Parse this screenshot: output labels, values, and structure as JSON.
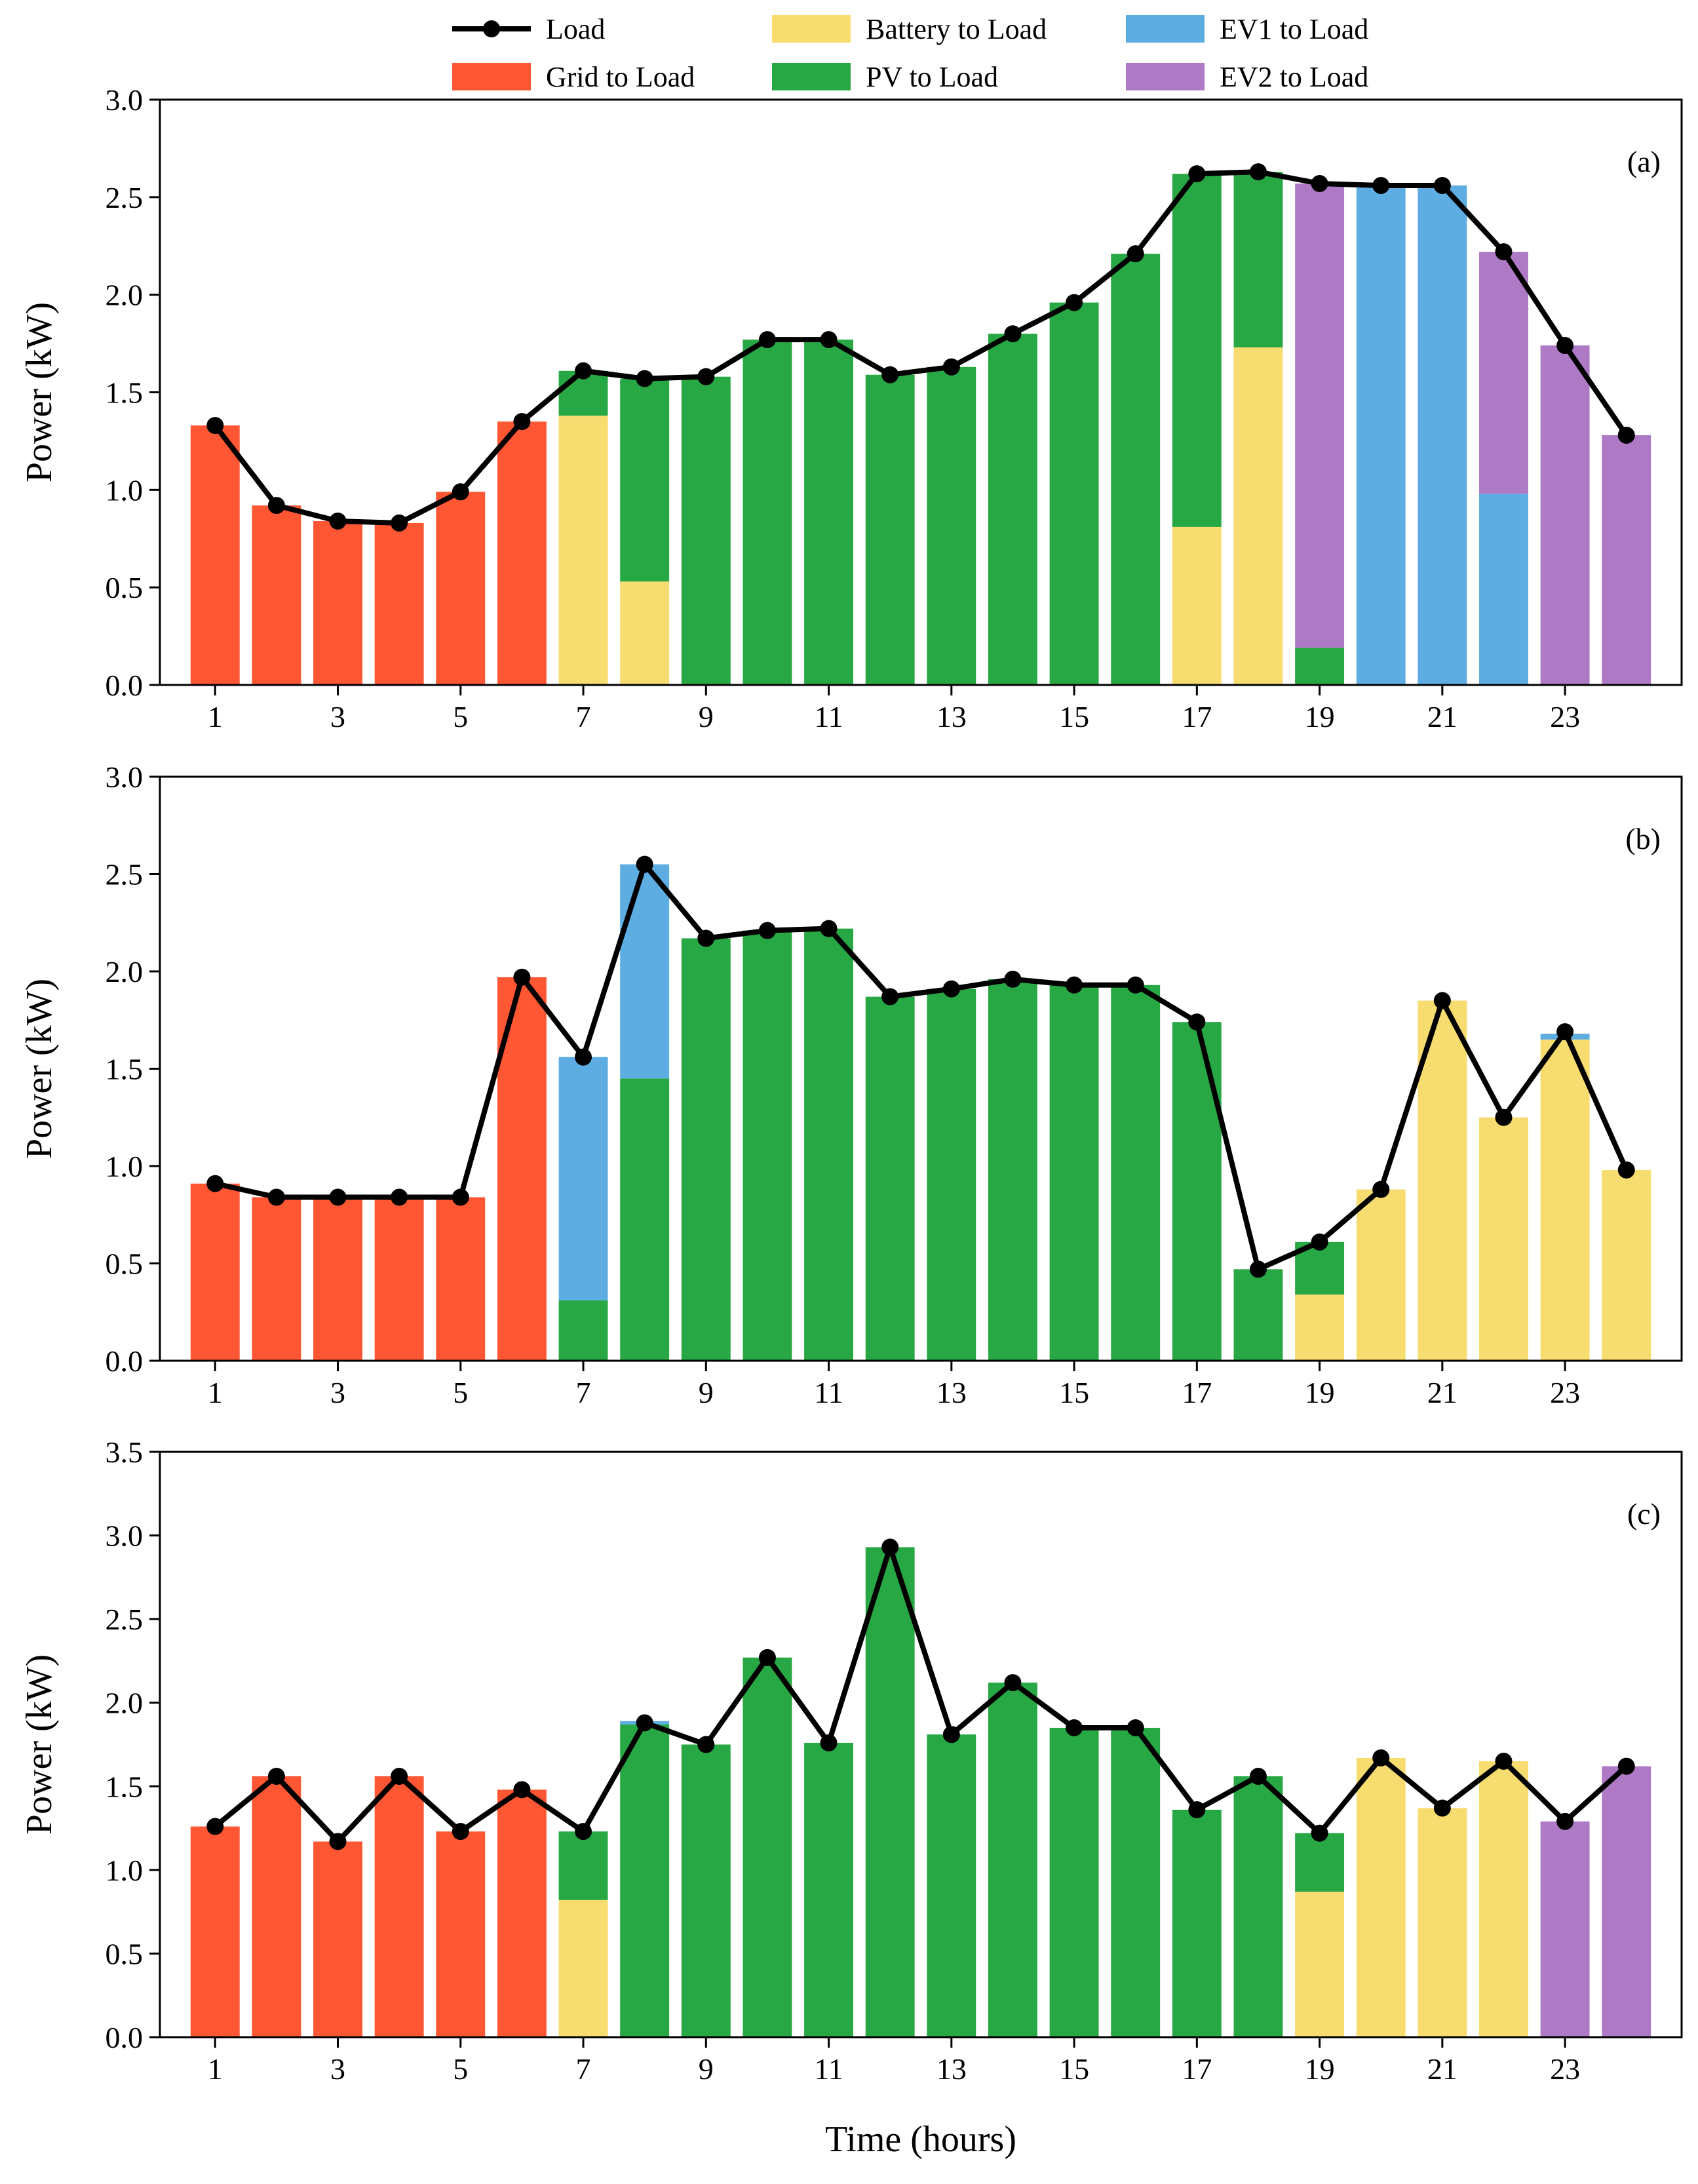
{
  "legend": [
    {
      "label": "Load",
      "kind": "line",
      "color": "#000000"
    },
    {
      "label": "Grid to Load",
      "kind": "bar",
      "color": "#ff5733"
    },
    {
      "label": "Battery to Load",
      "kind": "bar",
      "color": "#f7dc6f"
    },
    {
      "label": "PV to Load",
      "kind": "bar",
      "color": "#28a745"
    },
    {
      "label": "EV1 to Load",
      "kind": "bar",
      "color": "#5dade2"
    },
    {
      "label": "EV2 to Load",
      "kind": "bar",
      "color": "#af7ac5"
    }
  ],
  "xlabel": "Time (hours)",
  "chart_data": [
    {
      "type": "bar",
      "stacked": true,
      "panel": "(a)",
      "ylabel": "Power (kW)",
      "ylim": [
        0,
        3.0
      ],
      "yticks": [
        "0.0",
        "0.5",
        "1.0",
        "1.5",
        "2.0",
        "2.5",
        "3.0"
      ],
      "x": [
        1,
        2,
        3,
        4,
        5,
        6,
        7,
        8,
        9,
        10,
        11,
        12,
        13,
        14,
        15,
        16,
        17,
        18,
        19,
        20,
        21,
        22,
        23,
        24
      ],
      "xticks": [
        "1",
        "3",
        "5",
        "7",
        "9",
        "11",
        "13",
        "15",
        "17",
        "19",
        "21",
        "23"
      ],
      "series": [
        {
          "name": "Grid to Load",
          "color": "#ff5733",
          "values": [
            1.33,
            0.92,
            0.84,
            0.83,
            0.99,
            1.35,
            0,
            0,
            0,
            0,
            0,
            0,
            0,
            0,
            0,
            0,
            0,
            0,
            0,
            0,
            0,
            0,
            0,
            0
          ]
        },
        {
          "name": "Battery to Load",
          "color": "#f7dc6f",
          "values": [
            0,
            0,
            0,
            0,
            0,
            0,
            1.38,
            0.53,
            0,
            0,
            0,
            0,
            0,
            0,
            0,
            0,
            0.81,
            1.73,
            0,
            0,
            0,
            0,
            0,
            0
          ]
        },
        {
          "name": "PV to Load",
          "color": "#28a745",
          "values": [
            0,
            0,
            0,
            0,
            0,
            0,
            0.23,
            1.04,
            1.58,
            1.77,
            1.77,
            1.59,
            1.63,
            1.8,
            1.96,
            2.21,
            1.81,
            0.9,
            0.19,
            0,
            0,
            0,
            0,
            0
          ]
        },
        {
          "name": "EV1 to Load",
          "color": "#5dade2",
          "values": [
            0,
            0,
            0,
            0,
            0,
            0,
            0,
            0,
            0,
            0,
            0,
            0,
            0,
            0,
            0,
            0,
            0,
            0,
            0,
            2.56,
            2.56,
            0.98,
            0,
            0
          ]
        },
        {
          "name": "EV2 to Load",
          "color": "#af7ac5",
          "values": [
            0,
            0,
            0,
            0,
            0,
            0,
            0,
            0,
            0,
            0,
            0,
            0,
            0,
            0,
            0,
            0,
            0,
            0,
            2.38,
            0,
            0,
            1.24,
            1.74,
            1.28
          ]
        }
      ],
      "load": {
        "name": "Load",
        "values": [
          1.33,
          0.92,
          0.84,
          0.83,
          0.99,
          1.35,
          1.61,
          1.57,
          1.58,
          1.77,
          1.77,
          1.59,
          1.63,
          1.8,
          1.96,
          2.21,
          2.62,
          2.63,
          2.57,
          2.56,
          2.56,
          2.22,
          1.74,
          1.28
        ]
      }
    },
    {
      "type": "bar",
      "stacked": true,
      "panel": "(b)",
      "ylabel": "Power (kW)",
      "ylim": [
        0,
        3.0
      ],
      "yticks": [
        "0.0",
        "0.5",
        "1.0",
        "1.5",
        "2.0",
        "2.5",
        "3.0"
      ],
      "x": [
        1,
        2,
        3,
        4,
        5,
        6,
        7,
        8,
        9,
        10,
        11,
        12,
        13,
        14,
        15,
        16,
        17,
        18,
        19,
        20,
        21,
        22,
        23,
        24
      ],
      "xticks": [
        "1",
        "3",
        "5",
        "7",
        "9",
        "11",
        "13",
        "15",
        "17",
        "19",
        "21",
        "23"
      ],
      "series": [
        {
          "name": "Grid to Load",
          "color": "#ff5733",
          "values": [
            0.91,
            0.84,
            0.84,
            0.84,
            0.84,
            1.97,
            0,
            0,
            0,
            0,
            0,
            0,
            0,
            0,
            0,
            0,
            0,
            0,
            0,
            0,
            0,
            0,
            0,
            0
          ]
        },
        {
          "name": "Battery to Load",
          "color": "#f7dc6f",
          "values": [
            0,
            0,
            0,
            0,
            0,
            0,
            0,
            0,
            0,
            0,
            0,
            0,
            0,
            0,
            0,
            0,
            0,
            0,
            0.34,
            0.88,
            1.85,
            1.25,
            1.65,
            0.98
          ]
        },
        {
          "name": "PV to Load",
          "color": "#28a745",
          "values": [
            0,
            0,
            0,
            0,
            0,
            0,
            0.31,
            1.45,
            2.17,
            2.21,
            2.22,
            1.87,
            1.91,
            1.96,
            1.93,
            1.93,
            1.74,
            0.47,
            0.27,
            0,
            0,
            0,
            0,
            0
          ]
        },
        {
          "name": "EV1 to Load",
          "color": "#5dade2",
          "values": [
            0,
            0,
            0,
            0,
            0,
            0,
            1.25,
            1.1,
            0,
            0,
            0,
            0,
            0,
            0,
            0,
            0,
            0,
            0,
            0,
            0,
            0,
            0,
            0.03,
            0
          ]
        },
        {
          "name": "EV2 to Load",
          "color": "#af7ac5",
          "values": [
            0,
            0,
            0,
            0,
            0,
            0,
            0,
            0,
            0,
            0,
            0,
            0,
            0,
            0,
            0,
            0,
            0,
            0,
            0,
            0,
            0,
            0,
            0,
            0
          ]
        }
      ],
      "load": {
        "name": "Load",
        "values": [
          0.91,
          0.84,
          0.84,
          0.84,
          0.84,
          1.97,
          1.56,
          2.55,
          2.17,
          2.21,
          2.22,
          1.87,
          1.91,
          1.96,
          1.93,
          1.93,
          1.74,
          0.47,
          0.61,
          0.88,
          1.85,
          1.25,
          1.69,
          0.98
        ]
      }
    },
    {
      "type": "bar",
      "stacked": true,
      "panel": "(c)",
      "ylabel": "Power (kW)",
      "ylim": [
        0,
        3.5
      ],
      "yticks": [
        "0.0",
        "0.5",
        "1.0",
        "1.5",
        "2.0",
        "2.5",
        "3.0",
        "3.5"
      ],
      "x": [
        1,
        2,
        3,
        4,
        5,
        6,
        7,
        8,
        9,
        10,
        11,
        12,
        13,
        14,
        15,
        16,
        17,
        18,
        19,
        20,
        21,
        22,
        23,
        24
      ],
      "xticks": [
        "1",
        "3",
        "5",
        "7",
        "9",
        "11",
        "13",
        "15",
        "17",
        "19",
        "21",
        "23"
      ],
      "series": [
        {
          "name": "Grid to Load",
          "color": "#ff5733",
          "values": [
            1.26,
            1.56,
            1.17,
            1.56,
            1.23,
            1.48,
            0,
            0,
            0,
            0,
            0,
            0,
            0,
            0,
            0,
            0,
            0,
            0,
            0,
            0,
            0,
            0,
            0,
            0
          ]
        },
        {
          "name": "Battery to Load",
          "color": "#f7dc6f",
          "values": [
            0,
            0,
            0,
            0,
            0,
            0,
            0.82,
            0,
            0,
            0,
            0,
            0,
            0,
            0,
            0,
            0,
            0,
            0,
            0.87,
            1.67,
            1.37,
            1.65,
            0,
            0
          ]
        },
        {
          "name": "PV to Load",
          "color": "#28a745",
          "values": [
            0,
            0,
            0,
            0,
            0,
            0,
            0.41,
            1.87,
            1.75,
            2.27,
            1.76,
            2.93,
            1.81,
            2.12,
            1.85,
            1.85,
            1.36,
            1.56,
            0.35,
            0,
            0,
            0,
            0,
            0
          ]
        },
        {
          "name": "EV1 to Load",
          "color": "#5dade2",
          "values": [
            0,
            0,
            0,
            0,
            0,
            0,
            0,
            0.02,
            0,
            0,
            0,
            0,
            0,
            0,
            0,
            0,
            0,
            0,
            0,
            0,
            0,
            0,
            0,
            0
          ]
        },
        {
          "name": "EV2 to Load",
          "color": "#af7ac5",
          "values": [
            0,
            0,
            0,
            0,
            0,
            0,
            0,
            0,
            0,
            0,
            0,
            0,
            0,
            0,
            0,
            0,
            0,
            0,
            0,
            0,
            0,
            0,
            1.29,
            1.62
          ]
        }
      ],
      "load": {
        "name": "Load",
        "values": [
          1.26,
          1.56,
          1.17,
          1.56,
          1.23,
          1.48,
          1.23,
          1.88,
          1.75,
          2.27,
          1.76,
          2.93,
          1.81,
          2.12,
          1.85,
          1.85,
          1.36,
          1.56,
          1.22,
          1.67,
          1.37,
          1.65,
          1.29,
          1.62
        ]
      }
    }
  ]
}
